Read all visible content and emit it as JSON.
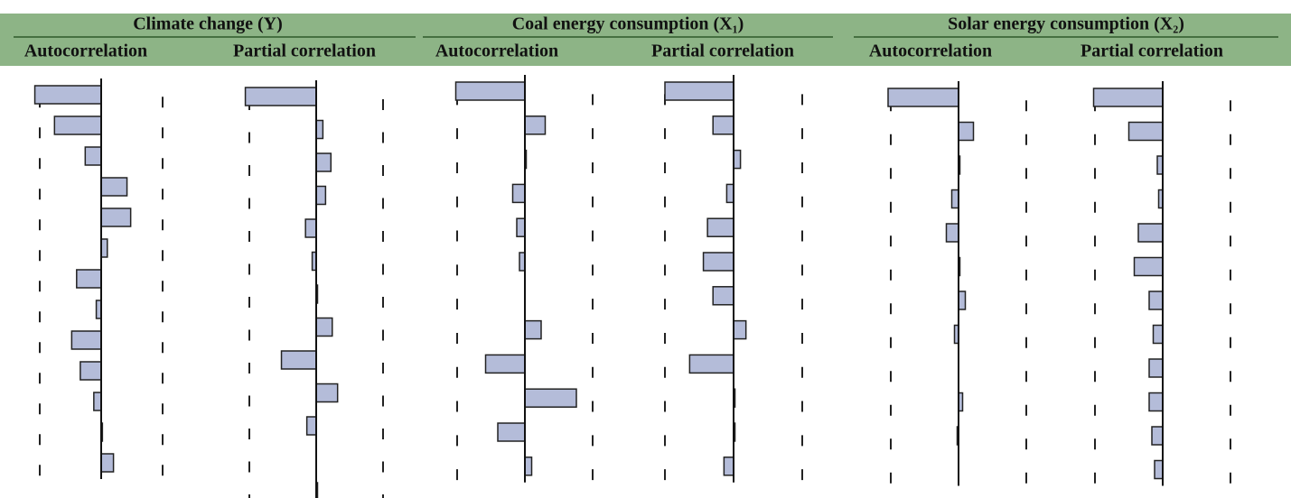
{
  "chart_data": {
    "type": "correlogram",
    "bound": 0.5,
    "groups": [
      {
        "title": "Climate change (Y)",
        "panels": [
          {
            "title": "Autocorrelation",
            "values": [
              -0.54,
              -0.38,
              -0.13,
              0.21,
              0.24,
              0.05,
              -0.2,
              -0.04,
              -0.24,
              -0.17,
              -0.06,
              0.01,
              0.1
            ]
          },
          {
            "title": "Partial correlation",
            "values": [
              -0.53,
              0.05,
              0.11,
              0.07,
              -0.08,
              -0.03,
              0.01,
              0.12,
              -0.26,
              0.16,
              -0.07,
              0.0,
              0.01
            ]
          }
        ]
      },
      {
        "title": "Coal energy consumption (X₁)",
        "panels": [
          {
            "title": "Autocorrelation",
            "values": [
              -0.51,
              0.15,
              0.01,
              -0.09,
              -0.06,
              -0.04,
              0.0,
              0.12,
              -0.29,
              0.38,
              -0.2,
              0.05
            ]
          },
          {
            "title": "Partial correlation",
            "values": [
              -0.5,
              -0.15,
              0.05,
              -0.05,
              -0.19,
              -0.22,
              -0.15,
              0.09,
              -0.32,
              0.01,
              0.01,
              -0.07
            ]
          }
        ]
      },
      {
        "title": "Solar energy consumption (X₂)",
        "panels": [
          {
            "title": "Autocorrelation",
            "values": [
              -0.52,
              0.11,
              0.01,
              -0.05,
              -0.09,
              0.01,
              0.05,
              -0.03,
              0.0,
              0.03,
              -0.01,
              0.0
            ]
          },
          {
            "title": "Partial correlation",
            "values": [
              -0.51,
              -0.25,
              -0.04,
              -0.03,
              -0.18,
              -0.21,
              -0.1,
              -0.07,
              -0.1,
              -0.1,
              -0.08,
              -0.06
            ]
          }
        ]
      }
    ]
  }
}
